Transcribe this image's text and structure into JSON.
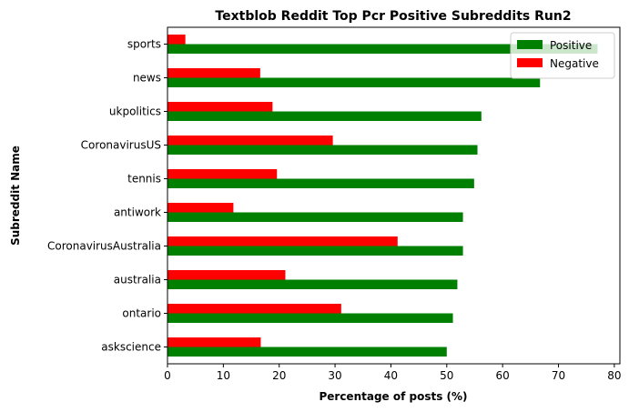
{
  "chart_data": {
    "type": "bar",
    "orientation": "horizontal",
    "title": "Textblob Reddit Top Pcr Positive Subreddits Run2",
    "xlabel": "Percentage of posts (%)",
    "ylabel": "Subreddit Name",
    "xlim": [
      0,
      81
    ],
    "xticks": [
      0,
      10,
      20,
      30,
      40,
      50,
      60,
      70,
      80
    ],
    "grid": false,
    "legend_position": "top-right",
    "categories": [
      "sports",
      "news",
      "ukpolitics",
      "CoronavirusUS",
      "tennis",
      "antiwork",
      "CoronavirusAustralia",
      "australia",
      "ontario",
      "askscience"
    ],
    "series": [
      {
        "name": "Positive",
        "color": "#008000",
        "values": [
          77.0,
          66.7,
          56.2,
          55.5,
          54.9,
          52.9,
          52.9,
          51.9,
          51.1,
          50.0
        ]
      },
      {
        "name": "Negative",
        "color": "#ff0000",
        "values": [
          3.2,
          16.6,
          18.8,
          29.6,
          19.6,
          11.8,
          41.2,
          21.1,
          31.1,
          16.7
        ]
      }
    ]
  }
}
